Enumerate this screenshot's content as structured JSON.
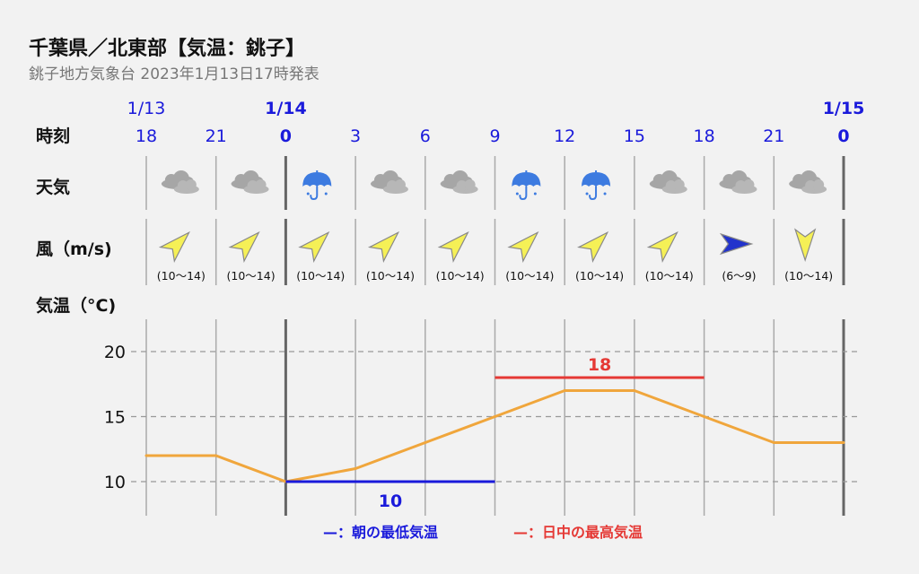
{
  "header": {
    "title": "千葉県／北東部【気温：銚子】",
    "subtitle": "銚子地方気象台 2023年1月13日17時発表"
  },
  "row_labels": {
    "time": "時刻",
    "weather": "天気",
    "wind": "風（m/s)",
    "temp": "気温（°C)"
  },
  "colors": {
    "blue": "#1a1adb",
    "red": "#e53935",
    "line": "#f0a63c",
    "grid": "#999999",
    "icon_yellow": "#f5f056",
    "icon_blue": "#2233cc",
    "umbrella": "#3d7be0",
    "cloud": "#a6a6a6"
  },
  "chart_data": {
    "type": "line",
    "dates": [
      {
        "label": "1/13",
        "at_index": 0,
        "bold": false
      },
      {
        "label": "1/14",
        "at_index": 2,
        "bold": true
      },
      {
        "label": "1/15",
        "at_index": 10,
        "bold": true
      }
    ],
    "hours": [
      "18",
      "21",
      "0",
      "3",
      "6",
      "9",
      "12",
      "15",
      "18",
      "21",
      "0"
    ],
    "bold_hours_index": [
      2,
      10
    ],
    "weather": [
      "cloud-icon",
      "cloud-icon",
      "umbrella-icon",
      "cloud-icon",
      "cloud-icon",
      "umbrella-icon",
      "umbrella-icon",
      "cloud-icon",
      "cloud-icon",
      "cloud-icon"
    ],
    "wind": [
      {
        "speed": "(10〜14)",
        "direction": "SW",
        "color": "yellow"
      },
      {
        "speed": "(10〜14)",
        "direction": "SW",
        "color": "yellow"
      },
      {
        "speed": "(10〜14)",
        "direction": "SW",
        "color": "yellow"
      },
      {
        "speed": "(10〜14)",
        "direction": "SW",
        "color": "yellow"
      },
      {
        "speed": "(10〜14)",
        "direction": "SW",
        "color": "yellow"
      },
      {
        "speed": "(10〜14)",
        "direction": "SW",
        "color": "yellow"
      },
      {
        "speed": "(10〜14)",
        "direction": "SW",
        "color": "yellow"
      },
      {
        "speed": "(10〜14)",
        "direction": "SW",
        "color": "yellow"
      },
      {
        "speed": "(6〜9)",
        "direction": "W",
        "color": "blue"
      },
      {
        "speed": "(10〜14)",
        "direction": "N",
        "color": "yellow"
      }
    ],
    "temperature": [
      12,
      12,
      10,
      11,
      13,
      15,
      17,
      17,
      15,
      13,
      13
    ],
    "y_ticks": [
      10,
      15,
      20
    ],
    "ylim": [
      8,
      21.5
    ],
    "min_temp": {
      "value": 10,
      "label": "10",
      "from_index": 2,
      "to_index": 5
    },
    "max_temp": {
      "value": 18,
      "label": "18",
      "from_index": 5,
      "to_index": 8
    },
    "legend": {
      "min": "—：朝の最低気温",
      "max": "—：日中の最高気温"
    }
  }
}
